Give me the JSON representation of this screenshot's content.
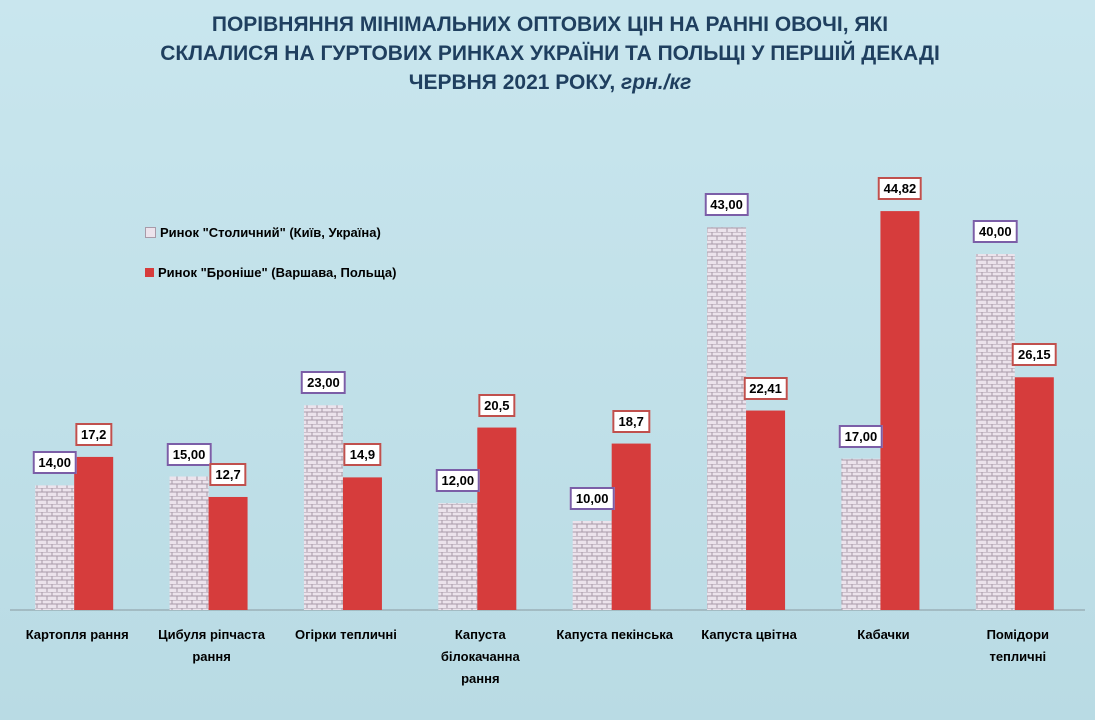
{
  "chart_data": {
    "type": "bar",
    "title": "ПОРІВНЯННЯ МІНІМАЛЬНИХ ОПТОВИХ ЦІН НА РАННІ ОВОЧІ, ЯКІ СКЛАЛИСЯ НА ГУРТОВИХ РИНКАХ УКРАЇНИ ТА ПОЛЬЩІ У ПЕРШІЙ ДЕКАДІ ЧЕРВНЯ 2021 РОКУ,",
    "title_unit": "грн./кг",
    "categories": [
      "Картопля рання",
      "Цибуля ріпчаста рання",
      "Огірки тепличні",
      "Капуста білокачанна рання",
      "Капуста пекінська",
      "Капуста цвітна",
      "Кабачки",
      "Помідори тепличні"
    ],
    "series": [
      {
        "name": "Ринок \"Столичний\"  (Київ, Україна)",
        "color": "#ece3ec",
        "pattern": "brick",
        "label_border": "#7b5ea7",
        "values": [
          14,
          15,
          23,
          12,
          10,
          43,
          17,
          40
        ],
        "value_labels": [
          "14,00",
          "15,00",
          "23,00",
          "12,00",
          "10,00",
          "43,00",
          "17,00",
          "40,00"
        ]
      },
      {
        "name": "Ринок \"Броніше\"  (Варшава,  Польща)",
        "color": "#d63c3c",
        "label_border": "#c0504d",
        "values": [
          17.2,
          12.7,
          14.9,
          20.5,
          18.7,
          22.41,
          44.82,
          26.15
        ],
        "value_labels": [
          "17,2",
          "12,7",
          "14,9",
          "20,5",
          "18,7",
          "22,41",
          "44,82",
          "26,15"
        ]
      }
    ],
    "legend": "upper-left"
  }
}
